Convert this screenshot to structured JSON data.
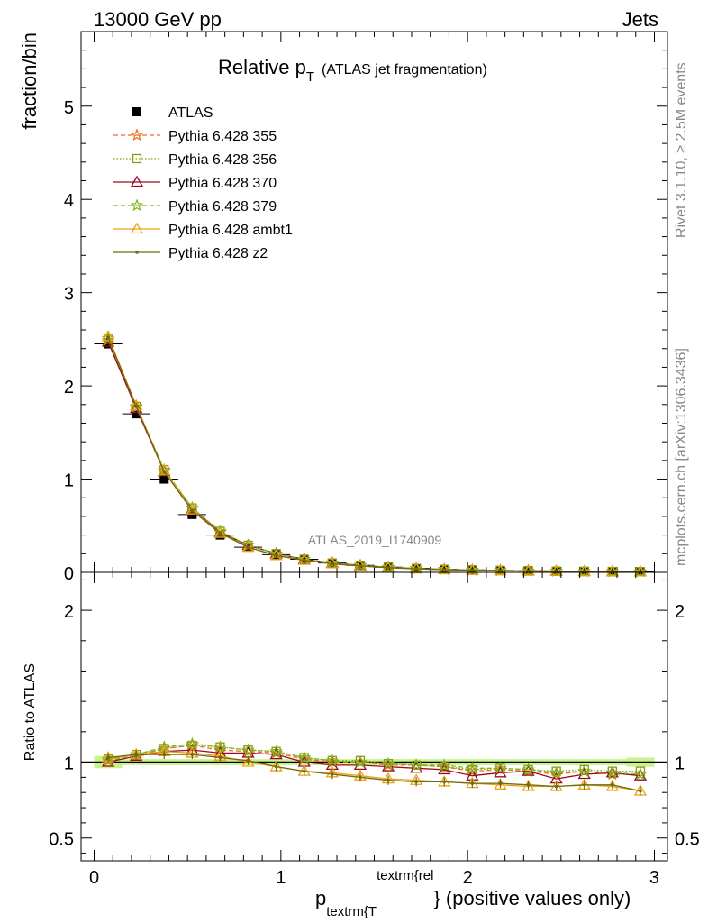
{
  "header": {
    "left": "13000 GeV pp",
    "right": "Jets"
  },
  "side_labels": {
    "rivet": "Rivet 3.1.10, ≥ 2.5M events",
    "mcplots": "mcplots.cern.ch [arXiv:1306.3436]"
  },
  "colors": {
    "ATLAS": "#000000",
    "355": "#ee6a1e",
    "356": "#8a9a0a",
    "370": "#9b0a22",
    "379": "#7cb81e",
    "ambt1": "#f0a010",
    "z2": "#6b6b10",
    "band": "#c8f28c"
  },
  "chart_data": [
    {
      "type": "line",
      "title_main": "Relative p",
      "title_sub": "T",
      "title_rest": "(ATLAS jet fragmentation)",
      "ylabel": "fraction/bin",
      "xlabel": "",
      "watermark": "ATLAS_2019_I1740909",
      "xlim": [
        -0.07,
        3.07
      ],
      "ylim": [
        0,
        5.8
      ],
      "yticks": [
        0,
        1,
        2,
        3,
        4,
        5
      ],
      "ytick_labels": [
        "0",
        "1",
        "2",
        "3",
        "4",
        "5"
      ],
      "x": [
        0.075,
        0.225,
        0.375,
        0.525,
        0.675,
        0.825,
        0.975,
        1.125,
        1.275,
        1.425,
        1.575,
        1.725,
        1.875,
        2.025,
        2.175,
        2.325,
        2.475,
        2.625,
        2.775,
        2.925
      ],
      "series": [
        {
          "name": "ATLAS",
          "key": "ATLAS",
          "marker": "square",
          "values": [
            2.45,
            1.7,
            1.0,
            0.62,
            0.4,
            0.27,
            0.19,
            0.14,
            0.1,
            0.075,
            0.056,
            0.043,
            0.033,
            0.026,
            0.021,
            0.017,
            0.014,
            0.011,
            0.009,
            0.007
          ]
        },
        {
          "name": "Pythia 6.428 355",
          "key": "355",
          "marker": "star",
          "dash": "5,3",
          "values": [
            2.49,
            1.77,
            1.09,
            0.69,
            0.43,
            0.29,
            0.2,
            0.14,
            0.1,
            0.075,
            0.055,
            0.042,
            0.032,
            0.025,
            0.02,
            0.016,
            0.013,
            0.01,
            0.008,
            0.007
          ]
        },
        {
          "name": "Pythia 6.428 356",
          "key": "356",
          "marker": "square-open",
          "dash": "1.5,2",
          "values": [
            2.5,
            1.78,
            1.1,
            0.69,
            0.44,
            0.29,
            0.2,
            0.14,
            0.1,
            0.076,
            0.055,
            0.042,
            0.032,
            0.025,
            0.02,
            0.016,
            0.013,
            0.01,
            0.009,
            0.007
          ]
        },
        {
          "name": "Pythia 6.428 370",
          "key": "370",
          "marker": "triangle-open",
          "dash": "",
          "values": [
            2.47,
            1.76,
            1.08,
            0.68,
            0.43,
            0.29,
            0.2,
            0.14,
            0.1,
            0.074,
            0.054,
            0.041,
            0.031,
            0.024,
            0.019,
            0.016,
            0.013,
            0.01,
            0.008,
            0.006
          ]
        },
        {
          "name": "Pythia 6.428 379",
          "key": "379",
          "marker": "star",
          "dash": "5,3",
          "values": [
            2.51,
            1.78,
            1.1,
            0.69,
            0.44,
            0.29,
            0.2,
            0.14,
            0.1,
            0.075,
            0.055,
            0.042,
            0.032,
            0.025,
            0.02,
            0.016,
            0.013,
            0.01,
            0.008,
            0.007
          ]
        },
        {
          "name": "Pythia 6.428 ambt1",
          "key": "ambt1",
          "marker": "triangle-open",
          "dash": "",
          "values": [
            2.53,
            1.79,
            1.09,
            0.67,
            0.42,
            0.27,
            0.18,
            0.13,
            0.093,
            0.068,
            0.049,
            0.038,
            0.029,
            0.022,
            0.018,
            0.014,
            0.012,
            0.009,
            0.008,
            0.006
          ]
        },
        {
          "name": "Pythia 6.428 z2",
          "key": "z2",
          "marker": "dot",
          "dash": "",
          "values": [
            2.52,
            1.78,
            1.08,
            0.66,
            0.42,
            0.27,
            0.18,
            0.13,
            0.092,
            0.068,
            0.05,
            0.038,
            0.029,
            0.022,
            0.018,
            0.014,
            0.012,
            0.009,
            0.008,
            0.006
          ]
        }
      ]
    },
    {
      "type": "line",
      "ylabel": "Ratio to ATLAS",
      "xlabel_main": "p",
      "xlabel_sub": "textrm{T",
      "xlabel_sup": "textrm{rel",
      "xlabel_rest": "} (positive values only)",
      "xlim": [
        -0.07,
        3.07
      ],
      "ylim": [
        0.35,
        2.25
      ],
      "yticks": [
        0.5,
        1,
        2
      ],
      "ytick_labels": [
        "0.5",
        "1",
        "2"
      ],
      "xticks": [
        0,
        1,
        2,
        3
      ],
      "xtick_labels": [
        "0",
        "1",
        "2",
        "3"
      ],
      "x": [
        0.075,
        0.225,
        0.375,
        0.525,
        0.675,
        0.825,
        0.975,
        1.125,
        1.275,
        1.425,
        1.575,
        1.725,
        1.875,
        2.025,
        2.175,
        2.325,
        2.475,
        2.625,
        2.775,
        2.925
      ],
      "band_half_width": [
        0.04,
        0.02,
        0.02,
        0.02,
        0.02,
        0.02,
        0.02,
        0.02,
        0.02,
        0.02,
        0.02,
        0.02,
        0.02,
        0.02,
        0.02,
        0.02,
        0.02,
        0.02,
        0.02,
        0.03
      ],
      "series": [
        {
          "name": "Pythia 6.428 355",
          "key": "355",
          "marker": "star",
          "dash": "5,3",
          "values": [
            1.01,
            1.04,
            1.09,
            1.11,
            1.08,
            1.07,
            1.06,
            1.02,
            1.0,
            1.0,
            0.98,
            0.98,
            0.97,
            0.94,
            0.95,
            0.94,
            0.92,
            0.94,
            0.92,
            0.92
          ]
        },
        {
          "name": "Pythia 6.428 356",
          "key": "356",
          "marker": "square-open",
          "dash": "1.5,2",
          "values": [
            1.02,
            1.05,
            1.09,
            1.11,
            1.1,
            1.08,
            1.07,
            1.03,
            1.01,
            1.01,
            0.99,
            0.98,
            0.97,
            0.95,
            0.96,
            0.95,
            0.94,
            0.95,
            0.94,
            0.94
          ]
        },
        {
          "name": "Pythia 6.428 370",
          "key": "370",
          "marker": "triangle-open",
          "dash": "",
          "values": [
            1.0,
            1.04,
            1.07,
            1.08,
            1.06,
            1.06,
            1.05,
            1.0,
            0.98,
            0.98,
            0.97,
            0.96,
            0.95,
            0.91,
            0.93,
            0.94,
            0.89,
            0.92,
            0.93,
            0.91
          ]
        },
        {
          "name": "Pythia 6.428 379",
          "key": "379",
          "marker": "star",
          "dash": "5,3",
          "values": [
            1.02,
            1.05,
            1.1,
            1.12,
            1.1,
            1.08,
            1.07,
            1.03,
            1.01,
            1.0,
            0.99,
            0.98,
            0.98,
            0.96,
            0.96,
            0.95,
            0.93,
            0.94,
            0.93,
            0.92
          ]
        },
        {
          "name": "Pythia 6.428 ambt1",
          "key": "ambt1",
          "marker": "triangle-open",
          "dash": "",
          "values": [
            1.03,
            1.05,
            1.07,
            1.06,
            1.04,
            1.0,
            0.97,
            0.94,
            0.93,
            0.91,
            0.89,
            0.88,
            0.87,
            0.86,
            0.85,
            0.84,
            0.84,
            0.85,
            0.84,
            0.81
          ]
        },
        {
          "name": "Pythia 6.428 z2",
          "key": "z2",
          "marker": "dot",
          "dash": "",
          "values": [
            1.03,
            1.05,
            1.05,
            1.05,
            1.03,
            1.01,
            0.97,
            0.94,
            0.92,
            0.9,
            0.88,
            0.87,
            0.87,
            0.86,
            0.86,
            0.85,
            0.84,
            0.85,
            0.85,
            0.81
          ]
        }
      ]
    }
  ]
}
